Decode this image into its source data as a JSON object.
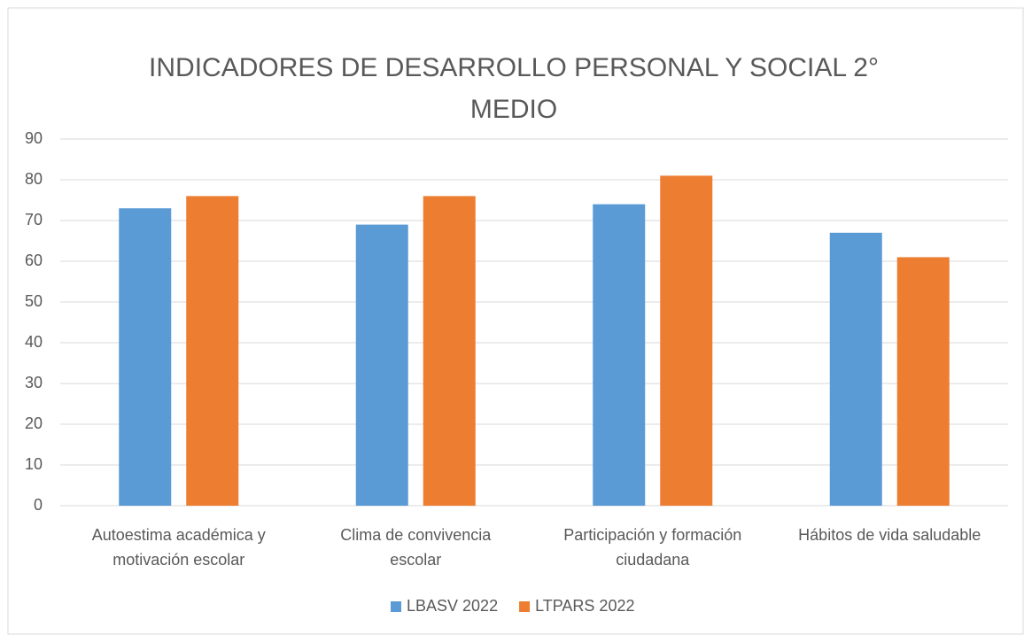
{
  "chart_data": {
    "type": "bar",
    "title": "INDICADORES DE DESARROLLO PERSONAL Y SOCIAL 2° MEDIO",
    "categories": [
      "Autoestima académica y motivación escolar",
      "Clima de convivencia escolar",
      "Participación y formación ciudadana",
      "Hábitos de vida saludable"
    ],
    "series": [
      {
        "name": "LBASV 2022",
        "color": "#5b9bd5",
        "values": [
          73,
          69,
          74,
          67
        ]
      },
      {
        "name": "LTPARS 2022",
        "color": "#ed7d31",
        "values": [
          76,
          76,
          81,
          61
        ]
      }
    ],
    "ylim": [
      0,
      90
    ],
    "yticks": [
      0,
      10,
      20,
      30,
      40,
      50,
      60,
      70,
      80,
      90
    ],
    "grid": true,
    "legend": "bottom"
  }
}
